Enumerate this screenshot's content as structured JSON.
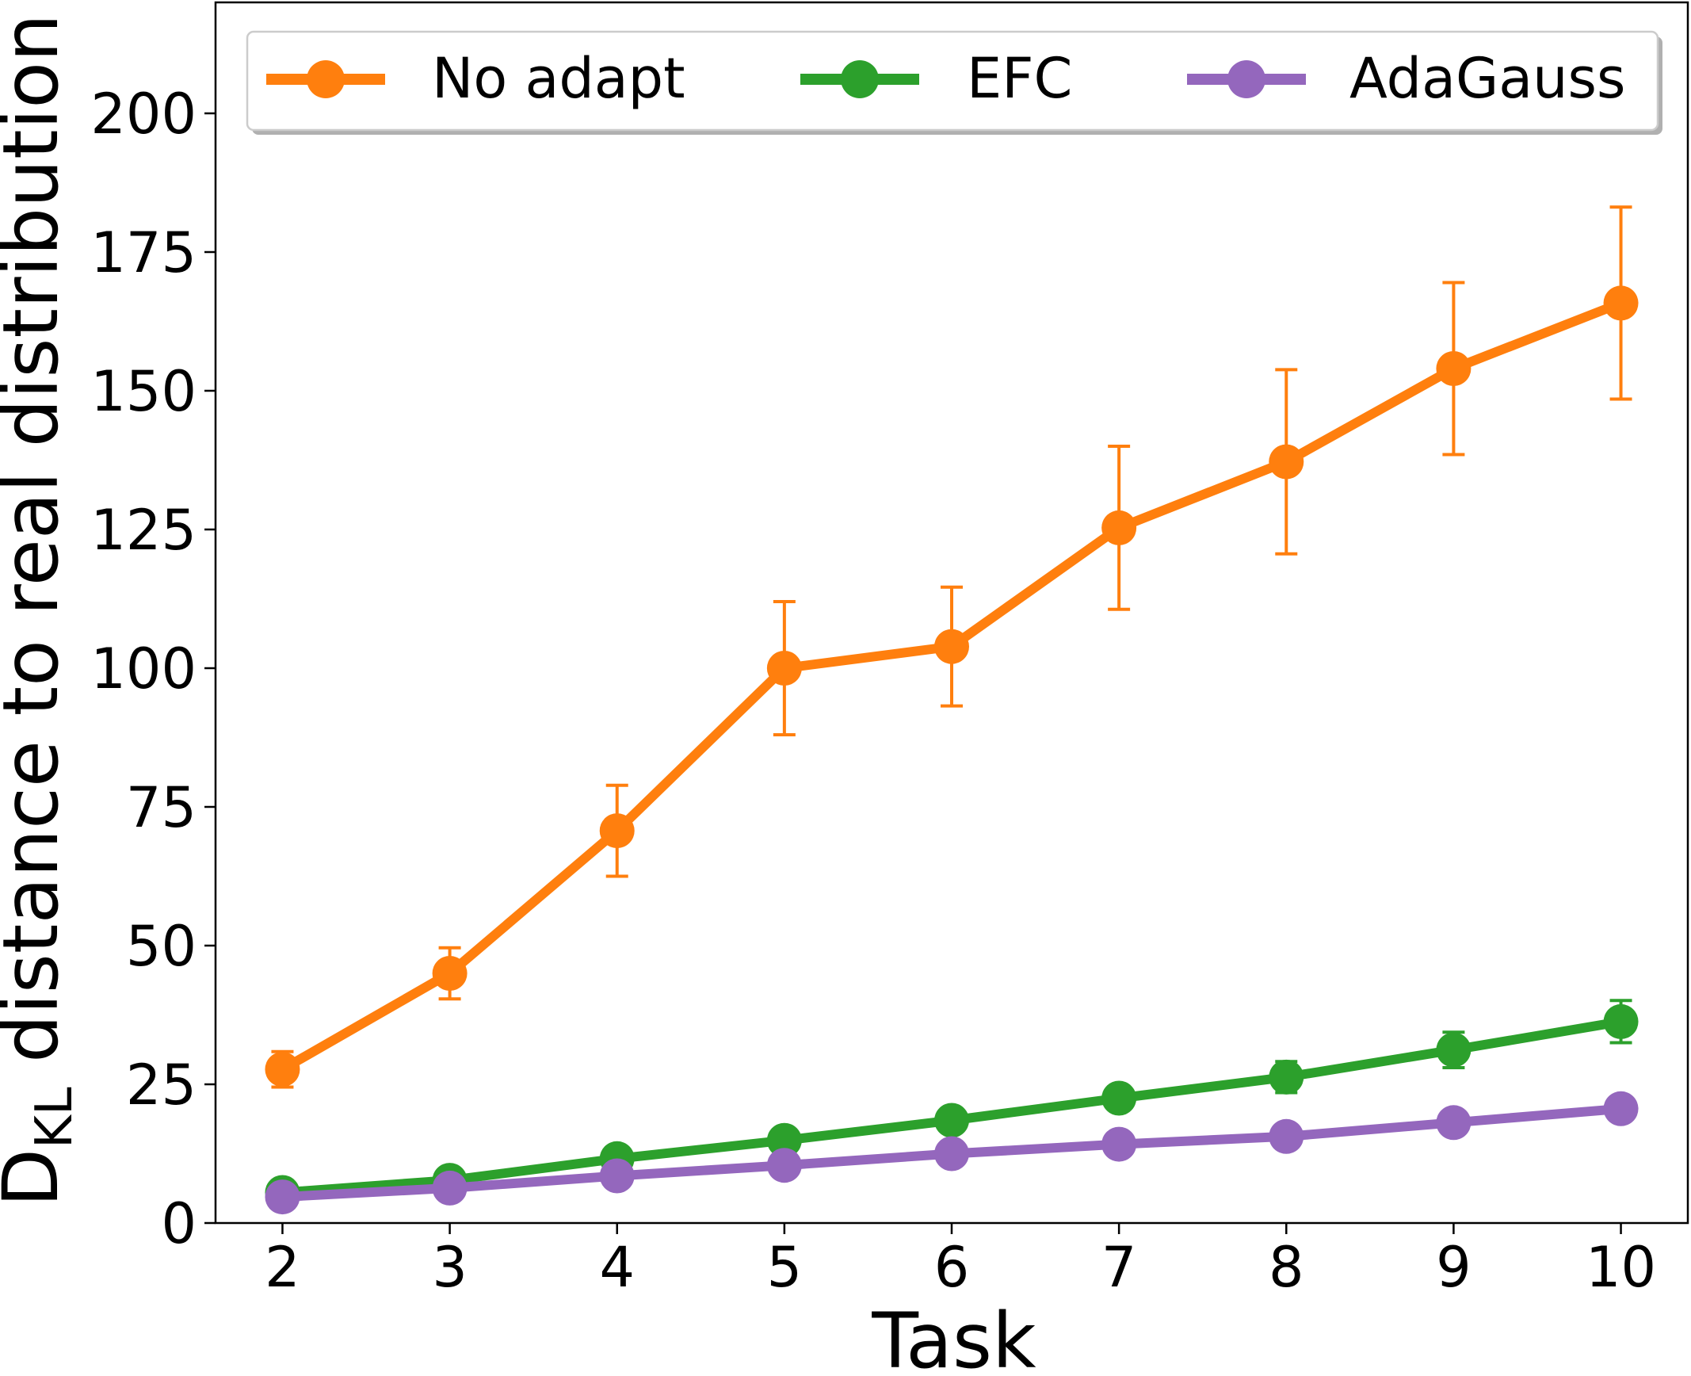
{
  "chart_data": {
    "type": "line",
    "title": "",
    "xlabel": "Task",
    "ylabel": {
      "main": "D",
      "subscript": "KL",
      "rest": " distance to real distribution"
    },
    "x": [
      2,
      3,
      4,
      5,
      6,
      7,
      8,
      9,
      10
    ],
    "xticks": [
      "2",
      "3",
      "4",
      "5",
      "6",
      "7",
      "8",
      "9",
      "10"
    ],
    "yticks": [
      "0",
      "25",
      "50",
      "75",
      "100",
      "125",
      "150",
      "175",
      "200"
    ],
    "xlim": [
      1.6,
      10.4
    ],
    "ylim": [
      0,
      220
    ],
    "legend_position": "top",
    "series": [
      {
        "name": "No adapt",
        "color": "#ff7f0e",
        "values": [
          27.7,
          45.0,
          70.7,
          100.0,
          103.9,
          125.3,
          137.2,
          154.0,
          165.8
        ],
        "errors": [
          3.2,
          4.6,
          8.2,
          12.0,
          10.7,
          14.7,
          16.6,
          15.5,
          17.3
        ]
      },
      {
        "name": "EFC",
        "color": "#2ca02c",
        "values": [
          5.5,
          7.7,
          11.6,
          14.9,
          18.5,
          22.5,
          26.3,
          31.2,
          36.3
        ],
        "errors": [
          0.9,
          1.0,
          1.2,
          1.4,
          1.6,
          2.0,
          2.8,
          3.2,
          3.8
        ]
      },
      {
        "name": "AdaGauss",
        "color": "#9467bd",
        "values": [
          4.7,
          6.3,
          8.5,
          10.4,
          12.5,
          14.2,
          15.6,
          18.1,
          20.6
        ],
        "errors": [
          0.5,
          0.6,
          0.6,
          0.7,
          0.7,
          0.8,
          0.9,
          1.0,
          1.1
        ]
      }
    ]
  }
}
